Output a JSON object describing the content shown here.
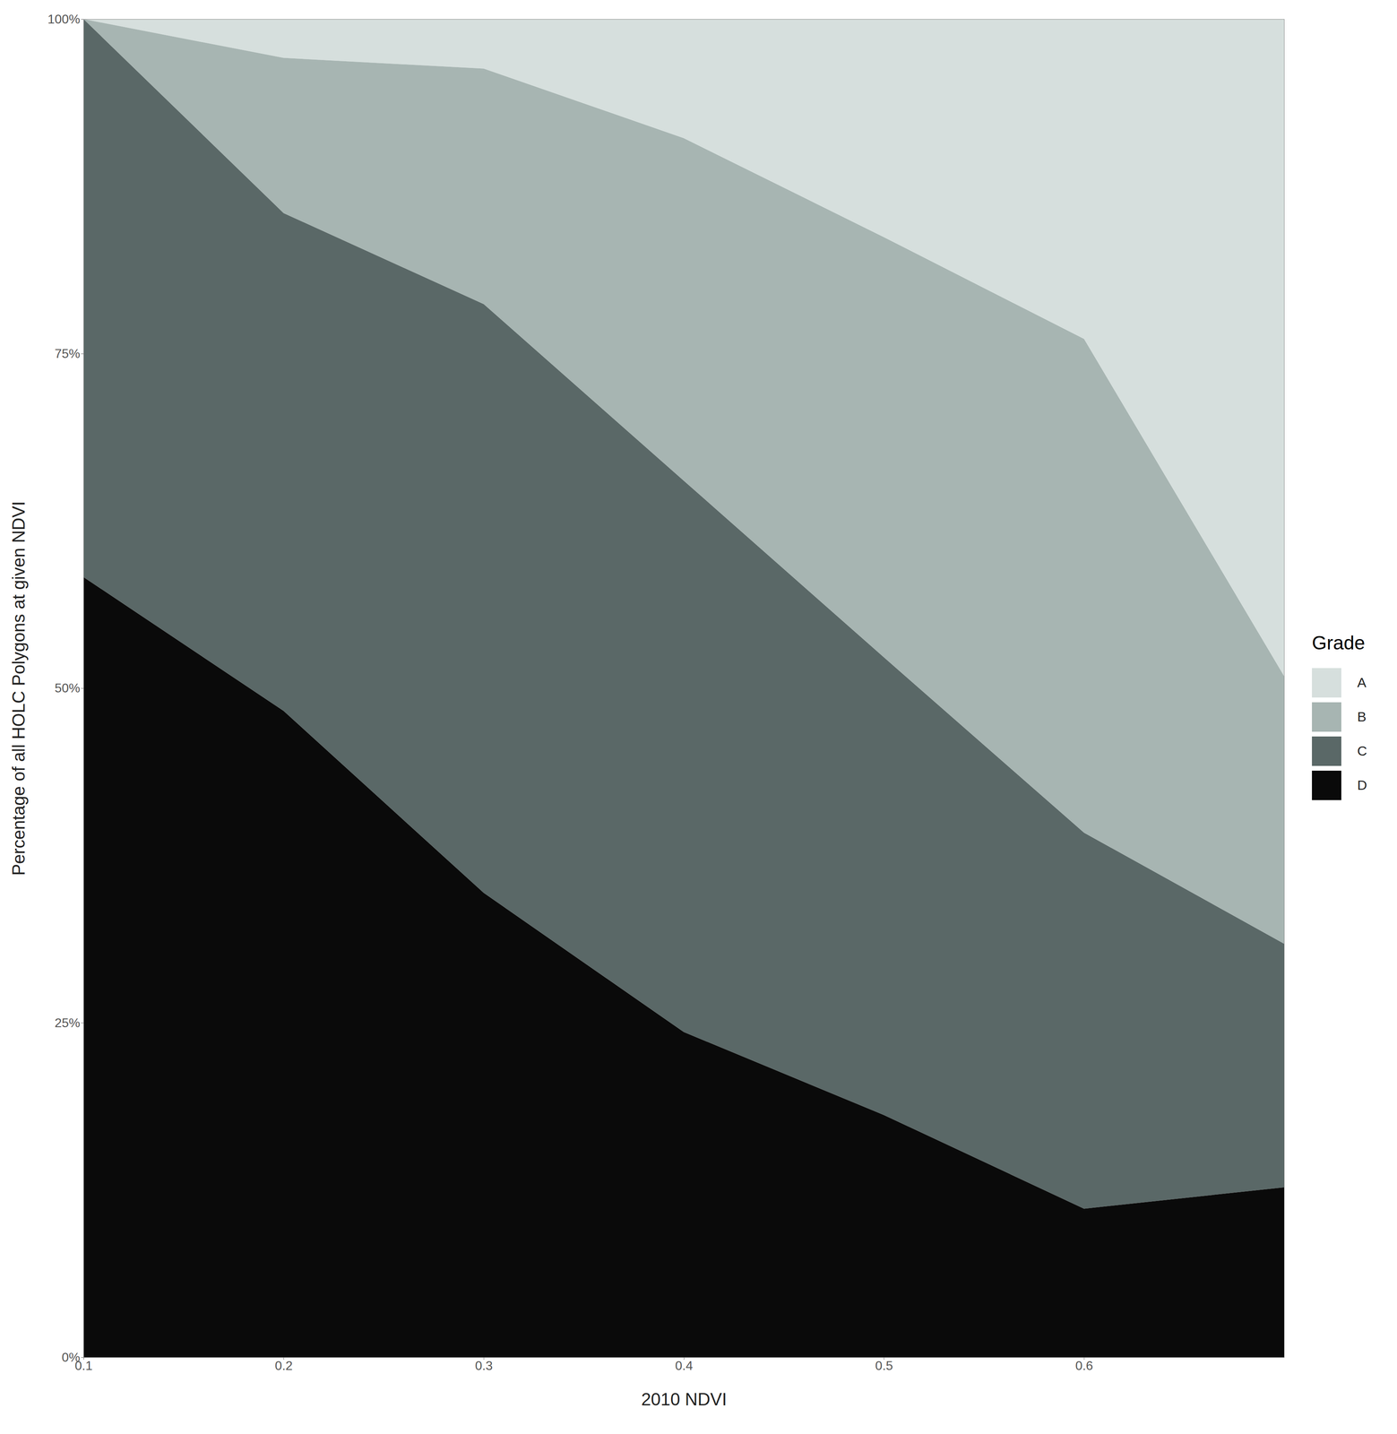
{
  "chart_data": {
    "type": "area",
    "stacked": true,
    "x_label": "2010 NDVI",
    "y_label": "Percentage of all HOLC Polygons at given NDVI",
    "legend_title": "Grade",
    "legend": "right",
    "grid": false,
    "x": [
      0.1,
      0.2,
      0.3,
      0.4,
      0.5,
      0.6,
      0.7
    ],
    "series": [
      {
        "name": "A",
        "color": "#d6dfdd",
        "values": [
          0,
          2.9,
          3.7,
          8.9,
          16.3,
          23.9,
          49.1
        ]
      },
      {
        "name": "B",
        "color": "#a7b5b2",
        "values": [
          0,
          11.6,
          17.6,
          25.6,
          31.4,
          36.9,
          20.0
        ]
      },
      {
        "name": "C",
        "color": "#5a6867",
        "values": [
          41.7,
          37.2,
          44.0,
          41.2,
          34.2,
          28.1,
          18.2
        ]
      },
      {
        "name": "D",
        "color": "#0a0a0a",
        "values": [
          58.3,
          48.3,
          34.7,
          24.3,
          18.1,
          11.1,
          12.7
        ]
      }
    ],
    "xlim": [
      0.1,
      0.7
    ],
    "xticks": [
      0.1,
      0.2,
      0.3,
      0.4,
      0.5,
      0.6
    ],
    "ylim": [
      0,
      100
    ],
    "yticks": [
      {
        "value": 0,
        "label": "0%"
      },
      {
        "value": 25,
        "label": "25%"
      },
      {
        "value": 50,
        "label": "50%"
      },
      {
        "value": 75,
        "label": "75%"
      },
      {
        "value": 100,
        "label": "100%"
      }
    ]
  }
}
